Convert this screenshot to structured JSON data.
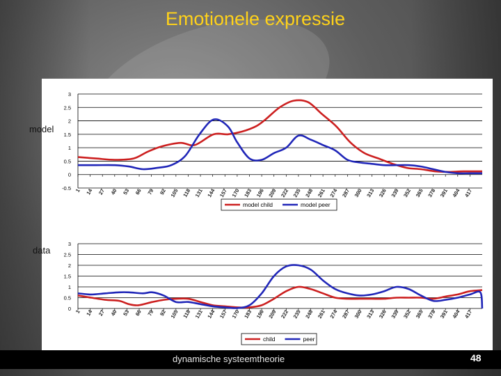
{
  "slide": {
    "title": "Emotionele expressie",
    "footer": "dynamische systeemtheorie",
    "page_number": "48",
    "label_model": "model",
    "label_data": "data"
  },
  "colors": {
    "child": "#cc1f1f",
    "peer": "#2026b8",
    "title": "#ffd21a"
  },
  "chart_data": [
    {
      "type": "line",
      "title": "",
      "xlabel": "",
      "ylabel": "",
      "ylim": [
        -0.5,
        3
      ],
      "yticks": [
        "3",
        "2.5",
        "2",
        "1.5",
        "1",
        "0.5",
        "0",
        "-0.5"
      ],
      "ytick_values": [
        3,
        2.5,
        2,
        1.5,
        1,
        0.5,
        0,
        -0.5
      ],
      "xticks": [
        "1",
        "14",
        "27",
        "40",
        "53",
        "66",
        "79",
        "92",
        "105",
        "118",
        "131",
        "144",
        "157",
        "170",
        "183",
        "196",
        "209",
        "222",
        "235",
        "248",
        "261",
        "274",
        "287",
        "300",
        "313",
        "326",
        "339",
        "352",
        "365",
        "378",
        "391",
        "404",
        "417"
      ],
      "xlim": [
        1,
        430
      ],
      "grid": true,
      "legend_position": "bottom",
      "series": [
        {
          "name": "model child",
          "x": [
            1,
            20,
            40,
            60,
            75,
            90,
            110,
            125,
            145,
            160,
            175,
            190,
            200,
            215,
            230,
            245,
            260,
            275,
            290,
            305,
            320,
            335,
            350,
            365,
            380,
            395,
            410,
            430
          ],
          "y": [
            0.65,
            0.6,
            0.55,
            0.6,
            0.85,
            1.05,
            1.18,
            1.1,
            1.5,
            1.5,
            1.6,
            1.8,
            2.05,
            2.5,
            2.75,
            2.7,
            2.25,
            1.8,
            1.2,
            0.8,
            0.6,
            0.4,
            0.25,
            0.2,
            0.12,
            0.1,
            0.12,
            0.12
          ]
        },
        {
          "name": "model peer",
          "x": [
            1,
            20,
            40,
            55,
            70,
            85,
            100,
            115,
            130,
            145,
            160,
            170,
            183,
            196,
            209,
            222,
            235,
            248,
            261,
            274,
            287,
            300,
            313,
            326,
            339,
            352,
            365,
            378,
            391,
            404,
            417,
            430
          ],
          "y": [
            0.35,
            0.35,
            0.35,
            0.3,
            0.2,
            0.25,
            0.35,
            0.7,
            1.5,
            2.05,
            1.8,
            1.2,
            0.6,
            0.55,
            0.8,
            1.0,
            1.45,
            1.3,
            1.1,
            0.9,
            0.55,
            0.45,
            0.4,
            0.35,
            0.35,
            0.35,
            0.3,
            0.2,
            0.1,
            0.05,
            0.05,
            0.05
          ]
        }
      ]
    },
    {
      "type": "line",
      "title": "",
      "xlabel": "",
      "ylabel": "",
      "ylim": [
        0,
        3
      ],
      "yticks": [
        "3",
        "2.5",
        "2",
        "1.5",
        "1",
        "0.5",
        "0"
      ],
      "ytick_values": [
        3,
        2.5,
        2,
        1.5,
        1,
        0.5,
        0
      ],
      "xticks": [
        "1",
        "14",
        "27",
        "40",
        "53",
        "66",
        "79",
        "92",
        "105",
        "118",
        "131",
        "144",
        "157",
        "170",
        "183",
        "196",
        "209",
        "222",
        "235",
        "248",
        "261",
        "274",
        "287",
        "300",
        "313",
        "326",
        "339",
        "352",
        "365",
        "378",
        "391",
        "404",
        "417"
      ],
      "xlim": [
        1,
        430
      ],
      "grid": true,
      "legend_position": "bottom",
      "series": [
        {
          "name": "child",
          "x": [
            1,
            15,
            30,
            45,
            55,
            65,
            80,
            92,
            105,
            118,
            131,
            144,
            157,
            170,
            183,
            196,
            209,
            222,
            235,
            248,
            261,
            274,
            287,
            300,
            313,
            326,
            339,
            352,
            365,
            378,
            391,
            404,
            417,
            430
          ],
          "y": [
            0.6,
            0.5,
            0.4,
            0.35,
            0.2,
            0.15,
            0.3,
            0.4,
            0.45,
            0.45,
            0.3,
            0.15,
            0.1,
            0.05,
            0.05,
            0.15,
            0.45,
            0.8,
            1.0,
            0.9,
            0.7,
            0.5,
            0.45,
            0.45,
            0.45,
            0.45,
            0.5,
            0.5,
            0.5,
            0.45,
            0.55,
            0.65,
            0.8,
            0.85
          ]
        },
        {
          "name": "peer",
          "x": [
            1,
            15,
            30,
            45,
            55,
            70,
            80,
            92,
            105,
            118,
            131,
            144,
            157,
            170,
            183,
            196,
            209,
            222,
            235,
            248,
            261,
            274,
            287,
            300,
            313,
            326,
            339,
            352,
            365,
            378,
            391,
            404,
            417,
            428,
            430
          ],
          "y": [
            0.7,
            0.65,
            0.7,
            0.75,
            0.75,
            0.7,
            0.75,
            0.6,
            0.3,
            0.3,
            0.2,
            0.1,
            0.05,
            0.02,
            0.15,
            0.7,
            1.5,
            1.95,
            2.0,
            1.8,
            1.3,
            0.9,
            0.7,
            0.6,
            0.65,
            0.8,
            1.0,
            0.9,
            0.6,
            0.35,
            0.4,
            0.5,
            0.65,
            0.75,
            0.0
          ]
        }
      ]
    }
  ]
}
